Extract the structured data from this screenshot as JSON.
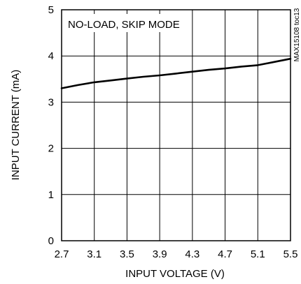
{
  "chart_data": {
    "type": "line",
    "annotation": "NO-LOAD, SKIP MODE",
    "figure_id": "MAX15108 toc13",
    "xlabel": "INPUT VOLTAGE (V)",
    "ylabel": "INPUT CURRENT (mA)",
    "xlim": [
      2.7,
      5.5
    ],
    "ylim": [
      0,
      5
    ],
    "xticks": [
      "2.7",
      "3.1",
      "3.5",
      "3.9",
      "4.3",
      "4.7",
      "5.1",
      "5.5"
    ],
    "yticks": [
      "0",
      "1",
      "2",
      "3",
      "4",
      "5"
    ],
    "grid": true,
    "series": [
      {
        "x": [
          2.7,
          2.9,
          3.1,
          3.3,
          3.5,
          3.7,
          3.9,
          4.1,
          4.3,
          4.5,
          4.7,
          4.9,
          5.1,
          5.3,
          5.5
        ],
        "values": [
          3.3,
          3.37,
          3.43,
          3.47,
          3.51,
          3.55,
          3.58,
          3.62,
          3.66,
          3.7,
          3.73,
          3.77,
          3.8,
          3.87,
          3.94
        ]
      }
    ]
  }
}
